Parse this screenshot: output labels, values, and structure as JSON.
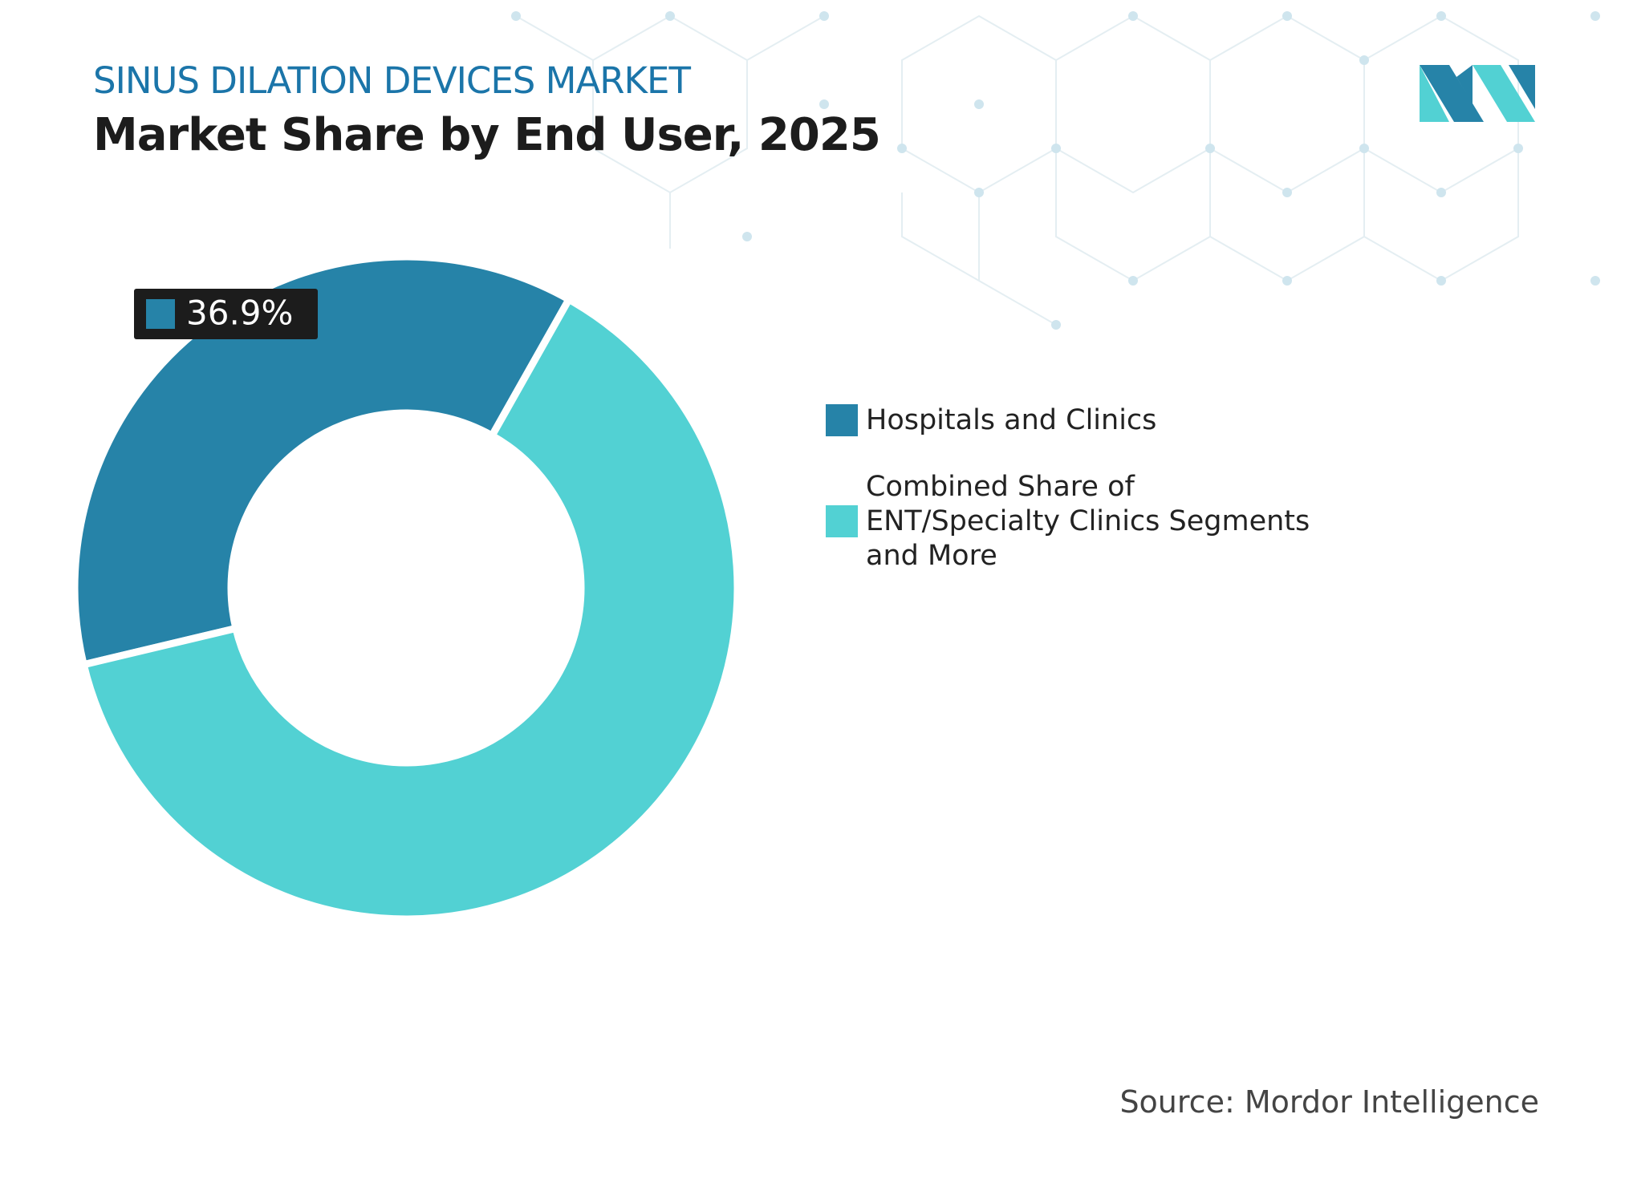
{
  "chart_data": {
    "type": "donut",
    "subtitle": "SINUS DILATION DEVICES MARKET",
    "title": "Market Share by End User, 2025",
    "categories": [
      "Hospitals and Clinics",
      "Combined Share of ENT/Specialty Clinics Segments and More"
    ],
    "values": [
      36.9,
      63.1
    ],
    "value_labels": [
      "36.9%",
      null
    ],
    "colors": [
      "#2683a8",
      "#52d1d3"
    ],
    "source": "Source: Mordor Intelligence"
  }
}
